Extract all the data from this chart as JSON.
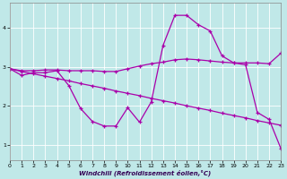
{
  "background_color": "#c0e8e8",
  "grid_color": "#aad4d4",
  "line_color": "#aa00aa",
  "xlabel": "Windchill (Refroidissement éolien,°C)",
  "xlim": [
    0,
    23
  ],
  "ylim": [
    0.6,
    4.65
  ],
  "xticks": [
    0,
    1,
    2,
    3,
    4,
    5,
    6,
    7,
    8,
    9,
    10,
    11,
    12,
    13,
    14,
    15,
    16,
    17,
    18,
    19,
    20,
    21,
    22,
    23
  ],
  "yticks": [
    1,
    2,
    3,
    4
  ],
  "series1_x": [
    0,
    1,
    2,
    3,
    4,
    5,
    6,
    7,
    8,
    9,
    10,
    11,
    12,
    13,
    14,
    15,
    16,
    17,
    18,
    19,
    20,
    21,
    22,
    23
  ],
  "series1_y": [
    2.95,
    2.78,
    2.85,
    2.85,
    2.9,
    2.52,
    1.93,
    1.6,
    1.48,
    1.48,
    1.95,
    1.58,
    2.1,
    3.55,
    4.32,
    4.32,
    4.08,
    3.92,
    3.28,
    3.1,
    3.05,
    1.83,
    1.65,
    0.9
  ],
  "series2_x": [
    0,
    1,
    2,
    3,
    4,
    5,
    6,
    7,
    8,
    9,
    10,
    11,
    12,
    13,
    14,
    15,
    16,
    17,
    18,
    19,
    20,
    21,
    22,
    23
  ],
  "series2_y": [
    2.95,
    2.88,
    2.82,
    2.76,
    2.7,
    2.64,
    2.57,
    2.51,
    2.45,
    2.38,
    2.32,
    2.26,
    2.19,
    2.13,
    2.07,
    2.0,
    1.94,
    1.88,
    1.81,
    1.75,
    1.69,
    1.62,
    1.56,
    1.5
  ],
  "series3_x": [
    0,
    1,
    2,
    3,
    4,
    5,
    6,
    7,
    8,
    9,
    10,
    11,
    12,
    13,
    14,
    15,
    16,
    17,
    18,
    19,
    20,
    21,
    22,
    23
  ],
  "series3_y": [
    2.95,
    2.9,
    2.9,
    2.92,
    2.92,
    2.9,
    2.9,
    2.9,
    2.88,
    2.88,
    2.95,
    3.02,
    3.08,
    3.12,
    3.18,
    3.2,
    3.18,
    3.15,
    3.12,
    3.1,
    3.1,
    3.1,
    3.08,
    3.35
  ]
}
